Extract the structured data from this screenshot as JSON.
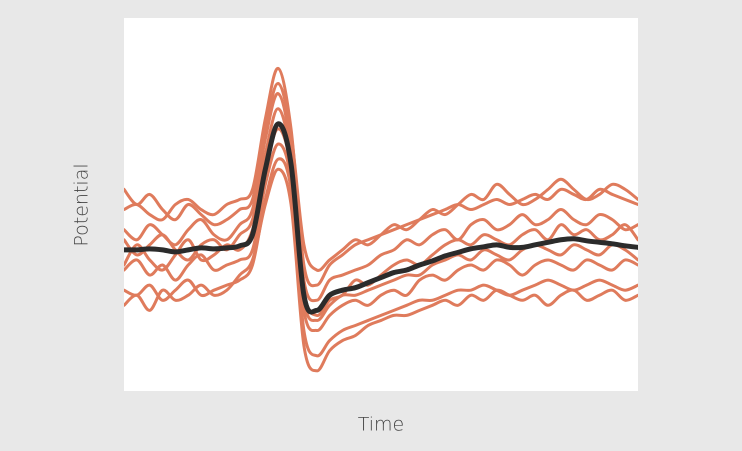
{
  "chart_data": {
    "type": "line",
    "xlabel": "Time",
    "ylabel": "Potential",
    "x": [
      0,
      1,
      2,
      3,
      4,
      5,
      6,
      7,
      8,
      9,
      10,
      11,
      12,
      13,
      14,
      15,
      16,
      17,
      18,
      19,
      20,
      21,
      22,
      23,
      24,
      25,
      26,
      27,
      28,
      29,
      30,
      31,
      32,
      33,
      34,
      35,
      36,
      37,
      38,
      39,
      40
    ],
    "xlim": [
      0,
      40
    ],
    "ylim": [
      -2.8,
      4.6
    ],
    "grid": false,
    "series": [
      {
        "color": "#df7b5c",
        "line_width": 3,
        "values": [
          0.8,
          0.9,
          0.7,
          0.6,
          0.9,
          1.0,
          0.8,
          0.7,
          0.9,
          1.0,
          1.2,
          2.6,
          3.6,
          2.4,
          -0.3,
          -0.7,
          -0.3,
          -0.1,
          0.1,
          0.2,
          0.3,
          0.4,
          0.5,
          0.6,
          0.7,
          0.8,
          0.9,
          0.8,
          0.9,
          1.0,
          0.9,
          1.0,
          1.1,
          1.0,
          1.2,
          1.1,
          1.0,
          1.2,
          1.1,
          1.0,
          0.9
        ]
      },
      {
        "color": "#df7b5c",
        "line_width": 3,
        "values": [
          -0.8,
          -0.9,
          -0.7,
          -1.0,
          -0.8,
          -0.6,
          -0.9,
          -0.8,
          -0.7,
          -0.6,
          -0.3,
          1.0,
          1.8,
          1.2,
          -1.6,
          -2.1,
          -1.8,
          -1.6,
          -1.5,
          -1.4,
          -1.3,
          -1.2,
          -1.1,
          -1.0,
          -1.0,
          -0.9,
          -0.8,
          -0.8,
          -0.7,
          -0.8,
          -0.9,
          -0.8,
          -0.7,
          -0.6,
          -0.7,
          -0.8,
          -0.7,
          -0.6,
          -0.7,
          -0.8,
          -0.7
        ]
      },
      {
        "color": "#df7b5c",
        "line_width": 3,
        "values": [
          0.4,
          0.2,
          0.5,
          0.3,
          0.1,
          0.4,
          0.6,
          0.3,
          0.2,
          0.5,
          0.8,
          2.2,
          3.1,
          2.0,
          -0.6,
          -1.0,
          -0.6,
          -0.5,
          -0.4,
          -0.3,
          -0.1,
          0.0,
          0.2,
          0.1,
          0.3,
          0.4,
          0.2,
          0.5,
          0.6,
          0.4,
          0.5,
          0.7,
          0.5,
          0.6,
          0.8,
          0.6,
          0.5,
          0.7,
          0.6,
          0.4,
          0.5
        ]
      },
      {
        "color": "#df7b5c",
        "line_width": 3,
        "values": [
          -0.4,
          -0.2,
          -0.5,
          -0.3,
          -0.6,
          -0.3,
          -0.1,
          -0.4,
          -0.3,
          -0.2,
          0.0,
          1.3,
          2.1,
          1.4,
          -1.2,
          -1.6,
          -1.3,
          -1.1,
          -1.0,
          -1.1,
          -0.9,
          -0.8,
          -0.9,
          -0.6,
          -0.5,
          -0.6,
          -0.4,
          -0.3,
          -0.4,
          -0.2,
          -0.3,
          -0.5,
          -0.3,
          -0.2,
          -0.3,
          -0.4,
          -0.2,
          -0.3,
          -0.4,
          -0.2,
          -0.3
        ]
      },
      {
        "color": "#df7b5c",
        "line_width": 3,
        "values": [
          1.2,
          0.9,
          1.1,
          0.8,
          0.6,
          0.9,
          0.7,
          0.5,
          0.6,
          0.8,
          1.0,
          2.4,
          3.3,
          2.3,
          0.1,
          -0.4,
          -0.2,
          0.0,
          0.2,
          0.1,
          0.3,
          0.5,
          0.4,
          0.6,
          0.8,
          0.7,
          0.9,
          1.1,
          1.0,
          1.3,
          1.1,
          0.9,
          1.0,
          1.2,
          1.4,
          1.2,
          1.0,
          1.1,
          1.3,
          1.2,
          1.0
        ]
      },
      {
        "color": "#df7b5c",
        "line_width": 3,
        "values": [
          -1.1,
          -0.9,
          -1.2,
          -0.8,
          -1.0,
          -0.9,
          -0.7,
          -0.9,
          -0.8,
          -0.5,
          -0.2,
          0.9,
          1.6,
          0.9,
          -1.9,
          -2.4,
          -2.0,
          -1.8,
          -1.7,
          -1.5,
          -1.4,
          -1.3,
          -1.3,
          -1.2,
          -1.1,
          -1.0,
          -1.1,
          -0.9,
          -1.0,
          -0.8,
          -0.9,
          -1.0,
          -0.9,
          -1.1,
          -0.9,
          -0.8,
          -1.0,
          -0.9,
          -0.8,
          -1.0,
          -0.9
        ]
      },
      {
        "color": "#df7b5c",
        "line_width": 3,
        "values": [
          0.2,
          -0.1,
          0.1,
          0.3,
          0.0,
          -0.2,
          0.1,
          0.2,
          0.0,
          0.3,
          0.6,
          1.9,
          2.8,
          1.8,
          -0.8,
          -1.3,
          -1.0,
          -0.9,
          -0.6,
          -0.7,
          -0.5,
          -0.3,
          -0.2,
          -0.3,
          -0.1,
          0.1,
          0.2,
          0.1,
          0.3,
          0.2,
          0.1,
          0.3,
          0.4,
          0.2,
          0.5,
          0.3,
          0.4,
          0.2,
          0.3,
          0.5,
          0.2
        ]
      },
      {
        "color": "#df7b5c",
        "line_width": 3,
        "values": [
          -0.3,
          0.1,
          -0.2,
          -0.4,
          -0.1,
          0.2,
          -0.2,
          -0.1,
          0.1,
          0.0,
          0.4,
          1.6,
          2.4,
          1.6,
          -1.0,
          -1.4,
          -1.1,
          -0.9,
          -0.9,
          -0.8,
          -0.7,
          -0.6,
          -0.5,
          -0.5,
          -0.3,
          -0.2,
          -0.1,
          -0.2,
          0.0,
          -0.1,
          -0.2,
          0.0,
          0.1,
          0.0,
          -0.1,
          0.1,
          0.0,
          -0.1,
          0.1,
          0.0,
          -0.2
        ]
      },
      {
        "color": "#2b2b2b",
        "line_width": 5,
        "values": [
          0,
          0,
          0.02,
          0,
          -0.04,
          0,
          0.04,
          0.02,
          0.04,
          0.08,
          0.3,
          1.6,
          2.5,
          1.7,
          -0.9,
          -1.2,
          -0.9,
          -0.8,
          -0.75,
          -0.65,
          -0.55,
          -0.45,
          -0.4,
          -0.3,
          -0.22,
          -0.12,
          -0.05,
          0.02,
          0.06,
          0.1,
          0.05,
          0.05,
          0.1,
          0.15,
          0.2,
          0.22,
          0.18,
          0.15,
          0.12,
          0.08,
          0.05
        ]
      }
    ]
  }
}
